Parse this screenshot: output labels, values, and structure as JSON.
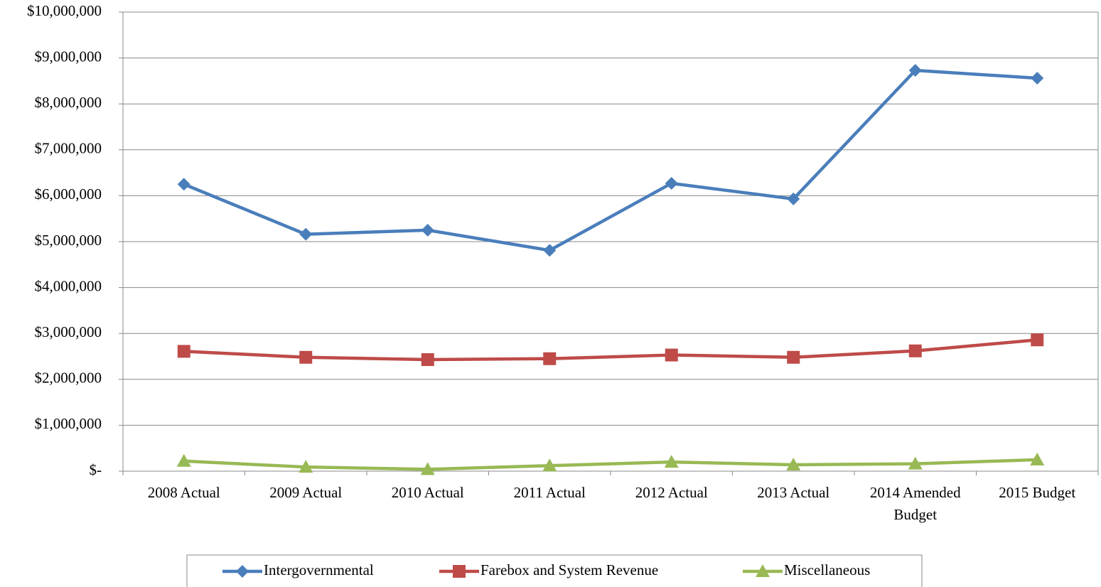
{
  "chart_data": {
    "type": "line",
    "categories": [
      "2008 Actual",
      "2009 Actual",
      "2010 Actual",
      "2011 Actual",
      "2012 Actual",
      "2013 Actual",
      "2014 Amended Budget",
      "2015 Budget"
    ],
    "series": [
      {
        "name": "Intergovernmental",
        "color": "#4a7ebb",
        "marker": "diamond",
        "values": [
          6250000,
          5160000,
          5250000,
          4810000,
          6270000,
          5930000,
          8730000,
          8560000
        ]
      },
      {
        "name": "Farebox and System Revenue",
        "color": "#be4b48",
        "marker": "square",
        "values": [
          2610000,
          2480000,
          2430000,
          2450000,
          2530000,
          2480000,
          2620000,
          2860000
        ]
      },
      {
        "name": "Miscellaneous",
        "color": "#98b954",
        "marker": "triangle",
        "values": [
          220000,
          90000,
          40000,
          120000,
          200000,
          140000,
          160000,
          250000
        ]
      }
    ],
    "ylim": [
      0,
      10000000
    ],
    "yticks": [
      {
        "value": 0,
        "label": "$-"
      },
      {
        "value": 1000000,
        "label": "$1,000,000"
      },
      {
        "value": 2000000,
        "label": "$2,000,000"
      },
      {
        "value": 3000000,
        "label": "$3,000,000"
      },
      {
        "value": 4000000,
        "label": "$4,000,000"
      },
      {
        "value": 5000000,
        "label": "$5,000,000"
      },
      {
        "value": 6000000,
        "label": "$6,000,000"
      },
      {
        "value": 7000000,
        "label": "$7,000,000"
      },
      {
        "value": 8000000,
        "label": "$8,000,000"
      },
      {
        "value": 9000000,
        "label": "$9,000,000"
      },
      {
        "value": 10000000,
        "label": "$10,000,000"
      }
    ],
    "grid": true,
    "legend": "bottom"
  }
}
